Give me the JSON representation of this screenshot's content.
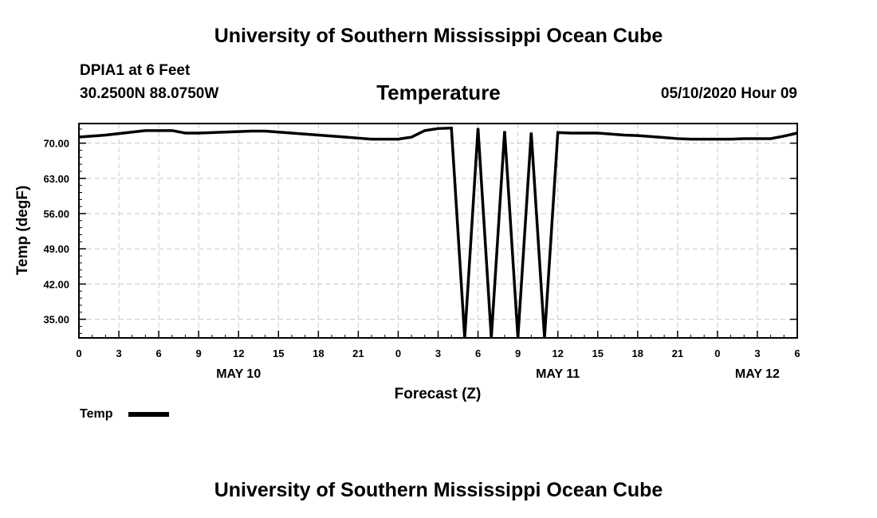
{
  "header": {
    "title": "University of Southern Mississippi Ocean Cube",
    "station": "DPIA1 at 6 Feet",
    "coords": "30.2500N 88.0750W",
    "datetime": "05/10/2020 Hour 09"
  },
  "footer": {
    "title": "University of Southern Mississippi Ocean Cube"
  },
  "chart_data": {
    "type": "line",
    "title": "Temperature",
    "xlabel": "Forecast (Z)",
    "ylabel": "Temp (degF)",
    "ylim": [
      31.3,
      73.9
    ],
    "xlim": [
      0,
      54
    ],
    "yticks": [
      "35.00",
      "42.00",
      "49.00",
      "56.00",
      "63.00",
      "70.00"
    ],
    "xtick_labels": [
      "0",
      "3",
      "6",
      "9",
      "12",
      "15",
      "18",
      "21",
      "0",
      "3",
      "6",
      "9",
      "12",
      "15",
      "18",
      "21",
      "0",
      "3",
      "6"
    ],
    "date_labels": [
      {
        "label": "MAY 10",
        "at": 12
      },
      {
        "label": "MAY 11",
        "at": 36
      },
      {
        "label": "MAY 12",
        "at": 51
      }
    ],
    "grid": true,
    "legend": {
      "position": "bottom-left",
      "entries": [
        "Temp"
      ]
    },
    "line_color": "#000000",
    "series": [
      {
        "name": "Temp",
        "x": [
          0,
          1,
          2,
          3,
          4,
          5,
          6,
          7,
          8,
          9,
          10,
          11,
          12,
          13,
          14,
          15,
          16,
          17,
          18,
          19,
          20,
          21,
          22,
          23,
          24,
          25,
          26,
          27,
          28,
          29,
          30,
          31,
          32,
          33,
          34,
          35,
          36,
          37,
          38,
          39,
          40,
          41,
          42,
          43,
          44,
          45,
          46,
          47,
          48,
          49,
          50,
          51,
          52,
          53,
          54
        ],
        "y": [
          71.2,
          71.4,
          71.6,
          71.9,
          72.2,
          72.5,
          72.5,
          72.5,
          72.0,
          72.0,
          72.1,
          72.2,
          72.3,
          72.4,
          72.4,
          72.2,
          72.0,
          71.8,
          71.6,
          71.4,
          71.2,
          71.0,
          70.8,
          70.8,
          70.8,
          71.2,
          72.5,
          72.9,
          73.0,
          31.3,
          73.0,
          31.3,
          72.4,
          31.3,
          72.1,
          31.3,
          72.1,
          72.0,
          72.0,
          72.0,
          71.8,
          71.6,
          71.5,
          71.3,
          71.1,
          70.9,
          70.8,
          70.8,
          70.8,
          70.8,
          70.9,
          70.9,
          70.9,
          71.4,
          72.0
        ]
      }
    ]
  }
}
